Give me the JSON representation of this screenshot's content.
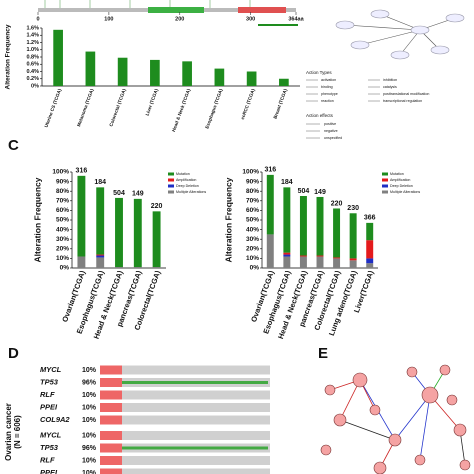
{
  "panel_labels": {
    "c": "C",
    "d": "D",
    "e": "E"
  },
  "chart_data": [
    {
      "type": "lollipop",
      "xlim": [
        0,
        364
      ],
      "xticks": [
        0,
        100,
        200,
        300,
        {
          "value": 364,
          "label": "364aa"
        }
      ]
    },
    {
      "type": "bar",
      "y_label": "Alteration Frequency",
      "categories": [
        "Uterine CS (TCGA)",
        "Melanoma (TCGA)",
        "Colorectal (TCGA)",
        "Liver (TCGA)",
        "Head & Neck (TCGA)",
        "Esophagus (TCGA)",
        "ccRCC (TCGA)",
        "Breast (TCGA)"
      ],
      "values": [
        1.55,
        0.95,
        0.78,
        0.72,
        0.68,
        0.48,
        0.4,
        0.2
      ],
      "color": "#1e8c1e",
      "ylim": [
        0,
        1.6
      ],
      "yticks": [
        {
          "value": 0,
          "label": "0%"
        },
        {
          "value": 0.2,
          "label": "0.2%"
        },
        {
          "value": 0.4,
          "label": "0.4%"
        },
        {
          "value": 0.6,
          "label": "0.6%"
        },
        {
          "value": 0.8,
          "label": "0.8%"
        },
        {
          "value": 1.0,
          "label": "1.0%"
        },
        {
          "value": 1.2,
          "label": "1.2%"
        },
        {
          "value": 1.4,
          "label": "1.4%"
        },
        {
          "value": 1.6,
          "label": "1.6%"
        }
      ]
    },
    {
      "type": "stacked",
      "y_label": "Alteration Frequency",
      "categories": [
        "Ovarian(TCGA)",
        "Esophagus(TCGA)",
        "Head & Neck(TCGA)",
        "pancreas(TCGA)",
        "Colorectal(TCGA)"
      ],
      "case_counts": [
        316,
        184,
        504,
        149,
        220
      ],
      "series": [
        {
          "name": "Mutation",
          "color": "#1e8c1e",
          "values": [
            84,
            70,
            72,
            71,
            58
          ]
        },
        {
          "name": "Amplification",
          "color": "#e41a1c",
          "values": [
            0,
            1,
            0,
            0,
            0
          ]
        },
        {
          "name": "Deep Deletion",
          "color": "#1f2fc4",
          "values": [
            0,
            2,
            0,
            0,
            0
          ]
        },
        {
          "name": "Multiple Alterations",
          "color": "#808080",
          "values": [
            12,
            11,
            1,
            1,
            1
          ]
        }
      ],
      "ylim": [
        0,
        100
      ],
      "yticks": [
        {
          "value": 0,
          "label": "0%"
        },
        {
          "value": 10,
          "label": "10%"
        },
        {
          "value": 20,
          "label": "20%"
        },
        {
          "value": 30,
          "label": "30%"
        },
        {
          "value": 40,
          "label": "40%"
        },
        {
          "value": 50,
          "label": "50%"
        },
        {
          "value": 60,
          "label": "60%"
        },
        {
          "value": 70,
          "label": "70%"
        },
        {
          "value": 80,
          "label": "80%"
        },
        {
          "value": 90,
          "label": "90%"
        },
        {
          "value": 100,
          "label": "100%"
        }
      ]
    },
    {
      "type": "stacked",
      "y_label": "Alteration Frequency",
      "categories": [
        "Ovarian(TCGA)",
        "Esophagus(TCGA)",
        "Head & Neck(TCGA)",
        "pancreas(TCGA)",
        "Colorectal(TCGA)",
        "Lung adeno(TCGA)",
        "Liver(TCGA)"
      ],
      "case_counts": [
        316,
        184,
        504,
        149,
        220,
        230,
        366
      ],
      "series": [
        {
          "name": "Mutation",
          "color": "#1e8c1e",
          "values": [
            62,
            68,
            62,
            61,
            51,
            47,
            18
          ]
        },
        {
          "name": "Amplification",
          "color": "#e41a1c",
          "values": [
            0,
            2,
            1,
            1,
            1,
            2,
            19
          ]
        },
        {
          "name": "Deep Deletion",
          "color": "#1f2fc4",
          "values": [
            0,
            2,
            0,
            0,
            0,
            0,
            5
          ]
        },
        {
          "name": "Multiple Alterations",
          "color": "#808080",
          "values": [
            35,
            12,
            12,
            12,
            10,
            8,
            5
          ]
        }
      ],
      "ylim": [
        0,
        100
      ],
      "yticks": [
        {
          "value": 0,
          "label": "0%"
        },
        {
          "value": 10,
          "label": "10%"
        },
        {
          "value": 20,
          "label": "20%"
        },
        {
          "value": 30,
          "label": "30%"
        },
        {
          "value": 40,
          "label": "40%"
        },
        {
          "value": 50,
          "label": "50%"
        },
        {
          "value": 60,
          "label": "60%"
        },
        {
          "value": 70,
          "label": "70%"
        },
        {
          "value": 80,
          "label": "80%"
        },
        {
          "value": 90,
          "label": "90%"
        },
        {
          "value": 100,
          "label": "100%"
        }
      ]
    }
  ],
  "network_legend": {
    "action_types_title": "Action Types",
    "action_types": [
      "activation",
      "inhibition",
      "binding",
      "catalysis",
      "phenotype",
      "posttranslational modification",
      "reaction",
      "transcriptional regulation"
    ],
    "action_effects_title": "Action effects",
    "action_effects": [
      "positive",
      "negative",
      "unspecified"
    ]
  },
  "oncoprint": {
    "side_label": [
      "Ovarian cancer",
      "(N = 606)"
    ],
    "groups": [
      [
        {
          "gene": "MYCL",
          "pct": "10%"
        },
        {
          "gene": "TP53",
          "pct": "96%"
        },
        {
          "gene": "RLF",
          "pct": "10%"
        },
        {
          "gene": "PPEI",
          "pct": "10%"
        },
        {
          "gene": "COL9A2",
          "pct": "10%"
        }
      ],
      [
        {
          "gene": "MYCL",
          "pct": "10%"
        },
        {
          "gene": "TP53",
          "pct": "96%"
        },
        {
          "gene": "RLF",
          "pct": "10%"
        },
        {
          "gene": "PPEI",
          "pct": "10%"
        }
      ]
    ]
  }
}
